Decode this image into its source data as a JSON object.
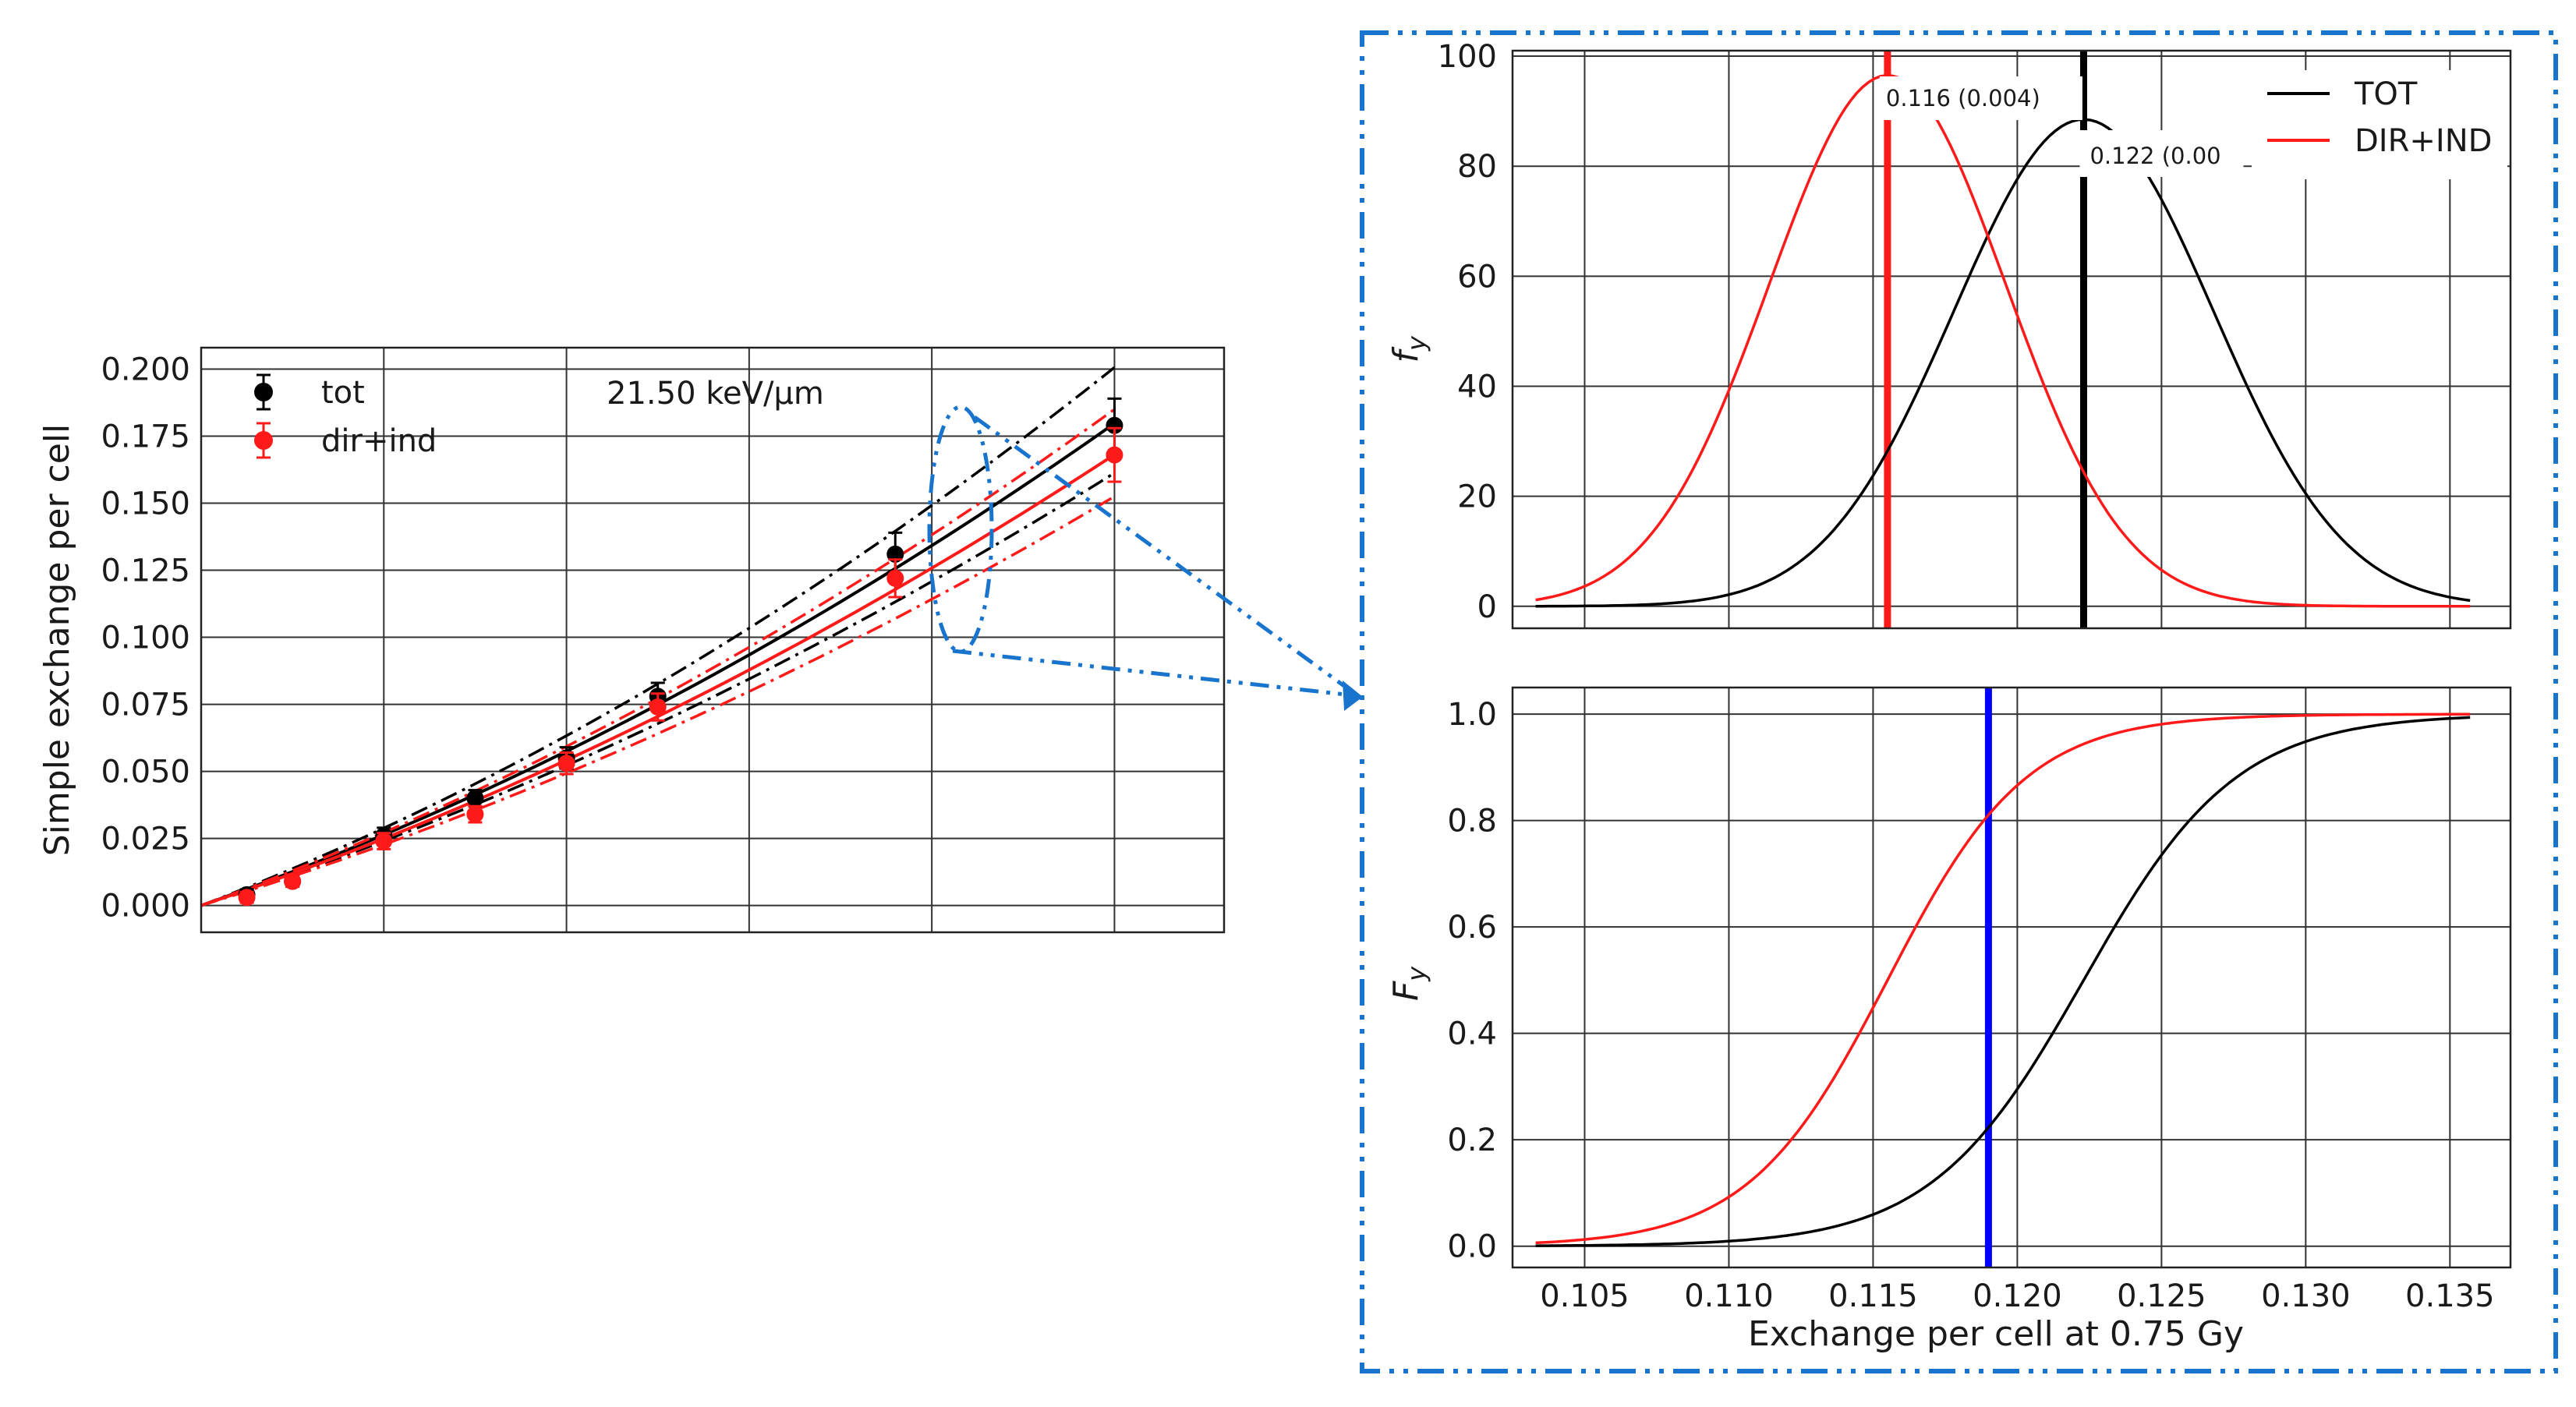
{
  "colors": {
    "tot": "#000000",
    "dir_ind": "#ff1a1a",
    "percentile_line": "#0000ff",
    "zoom_box": "#1874cd",
    "grid": "#333333"
  },
  "chart_data": [
    {
      "id": "left",
      "type": "scatter",
      "title": "",
      "annotation": "21.50 keV/µm",
      "xlabel": "",
      "ylabel": "Simple exchange per cell",
      "xlim": [
        0.0,
        2.8
      ],
      "ylim": [
        -0.01,
        0.208
      ],
      "x_gridlines": [
        0.5,
        1.0,
        1.5,
        2.0,
        2.5
      ],
      "yticks": [
        0.0,
        0.025,
        0.05,
        0.075,
        0.1,
        0.125,
        0.15,
        0.175,
        0.2
      ],
      "ytick_labels": [
        "0.000",
        "0.025",
        "0.050",
        "0.075",
        "0.100",
        "0.125",
        "0.150",
        "0.175",
        "0.200"
      ],
      "grid": true,
      "legend": {
        "position": "top-left",
        "entries": [
          "tot",
          "dir+ind"
        ]
      },
      "series": [
        {
          "name": "tot",
          "color": "#000000",
          "points": [
            {
              "x": 0.125,
              "y": 0.004,
              "err": 0.002
            },
            {
              "x": 0.25,
              "y": 0.009,
              "err": 0.002
            },
            {
              "x": 0.5,
              "y": 0.026,
              "err": 0.003
            },
            {
              "x": 0.75,
              "y": 0.04,
              "err": 0.003
            },
            {
              "x": 1.0,
              "y": 0.055,
              "err": 0.004
            },
            {
              "x": 1.25,
              "y": 0.078,
              "err": 0.005
            },
            {
              "x": 1.9,
              "y": 0.131,
              "err": 0.008
            },
            {
              "x": 2.5,
              "y": 0.179,
              "err": 0.01
            }
          ],
          "fit": {
            "a": 0.0479,
            "b": 0.0096
          },
          "fit_lower": {
            "a": 0.044,
            "b": 0.0082
          },
          "fit_upper": {
            "a": 0.052,
            "b": 0.0113
          }
        },
        {
          "name": "dir+ind",
          "color": "#ff1a1a",
          "points": [
            {
              "x": 0.125,
              "y": 0.003,
              "err": 0.002
            },
            {
              "x": 0.25,
              "y": 0.009,
              "err": 0.002
            },
            {
              "x": 0.5,
              "y": 0.024,
              "err": 0.003
            },
            {
              "x": 0.75,
              "y": 0.034,
              "err": 0.003
            },
            {
              "x": 1.0,
              "y": 0.053,
              "err": 0.004
            },
            {
              "x": 1.25,
              "y": 0.074,
              "err": 0.005
            },
            {
              "x": 1.9,
              "y": 0.122,
              "err": 0.007
            },
            {
              "x": 2.5,
              "y": 0.168,
              "err": 0.01
            }
          ],
          "fit": {
            "a": 0.0455,
            "b": 0.0087
          },
          "fit_lower": {
            "a": 0.0415,
            "b": 0.0078
          },
          "fit_upper": {
            "a": 0.0495,
            "b": 0.0098
          }
        }
      ]
    },
    {
      "id": "right-top",
      "type": "line",
      "title": "",
      "xlabel": "",
      "ylabel": "f",
      "ylabel_sub": "y",
      "xlim": [
        0.1025,
        0.1371
      ],
      "ylim": [
        -4,
        101
      ],
      "yticks": [
        0,
        20,
        40,
        60,
        80,
        100
      ],
      "ytick_labels": [
        "0",
        "20",
        "40",
        "60",
        "80",
        "100"
      ],
      "x_gridlines": [
        0.105,
        0.11,
        0.115,
        0.12,
        0.125,
        0.13,
        0.135
      ],
      "grid": true,
      "legend": {
        "position": "top-right",
        "entries": [
          "TOT",
          "DIR+IND"
        ]
      },
      "series": [
        {
          "name": "TOT",
          "color": "#000000",
          "mean": 0.1223,
          "sd": 0.0045,
          "peak": 88.5,
          "x_range": [
            0.1033,
            0.1357
          ]
        },
        {
          "name": "DIR+IND",
          "color": "#ff1a1a",
          "mean": 0.1155,
          "sd": 0.0041,
          "peak": 96.5,
          "x_range": [
            0.1033,
            0.1357
          ]
        }
      ],
      "vertical_markers": [
        {
          "x": 0.1155,
          "color": "#ff1a1a",
          "label": "0.116 (0.004)"
        },
        {
          "x": 0.1223,
          "color": "#000000",
          "label": "0.122 (0.00"
        }
      ]
    },
    {
      "id": "right-bottom",
      "type": "line",
      "title": "",
      "xlabel": "Exchange per cell at 0.75 Gy",
      "ylabel": "F",
      "ylabel_sub": "y",
      "xlim": [
        0.1025,
        0.1371
      ],
      "ylim": [
        -0.04,
        1.05
      ],
      "yticks": [
        0.0,
        0.2,
        0.4,
        0.6,
        0.8,
        1.0
      ],
      "ytick_labels": [
        "0.0",
        "0.2",
        "0.4",
        "0.6",
        "0.8",
        "1.0"
      ],
      "xticks": [
        0.105,
        0.11,
        0.115,
        0.12,
        0.125,
        0.13,
        0.135
      ],
      "xtick_labels": [
        "0.105",
        "0.110",
        "0.115",
        "0.120",
        "0.125",
        "0.130",
        "0.135"
      ],
      "grid": true,
      "series": [
        {
          "name": "TOT",
          "color": "#000000",
          "mean": 0.1223,
          "sd": 0.0045,
          "x_range": [
            0.1033,
            0.1357
          ]
        },
        {
          "name": "DIR+IND",
          "color": "#ff1a1a",
          "mean": 0.1155,
          "sd": 0.0041,
          "x_range": [
            0.1033,
            0.1357
          ]
        }
      ],
      "vertical_markers": [
        {
          "x": 0.119,
          "color": "#0000ff",
          "label": ""
        }
      ]
    }
  ]
}
